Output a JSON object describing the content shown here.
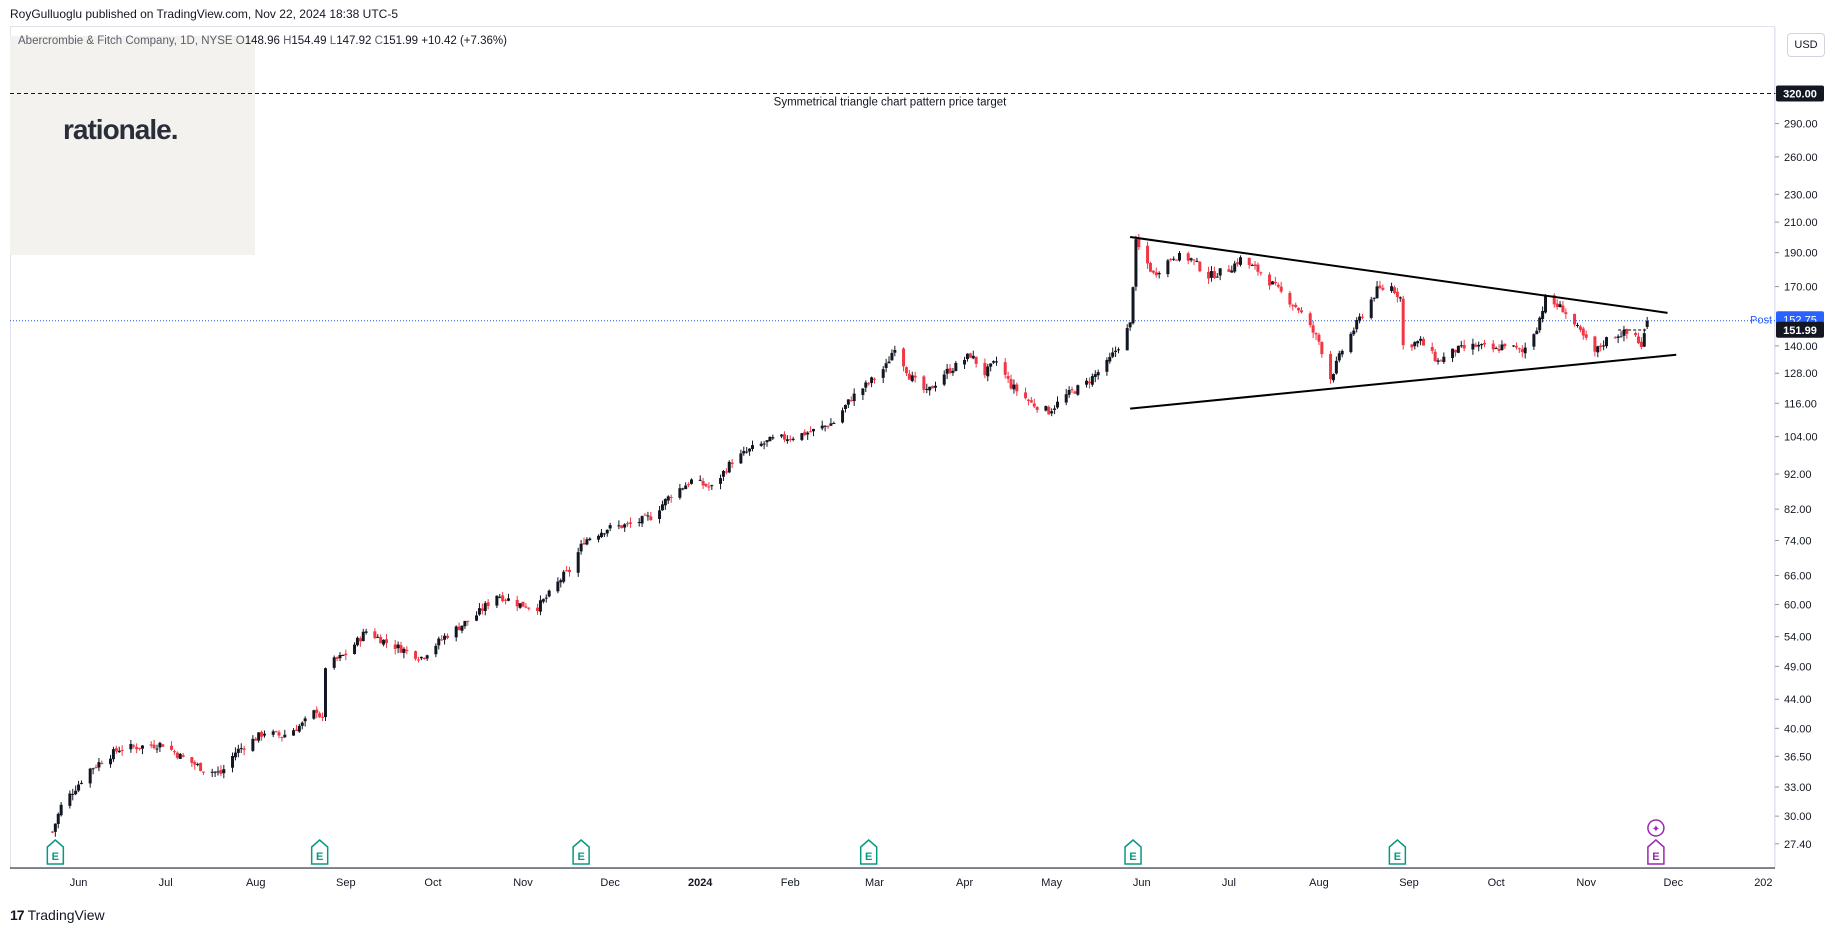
{
  "header": {
    "published": "RoyGulluoglu published on TradingView.com, Nov 22, 2024 18:38 UTC-5",
    "symbol_line": "Abercrombie & Fitch Company, 1D, NYSE",
    "ohlc": {
      "o_label": "O",
      "o": "148.96",
      "h_label": "H",
      "h": "154.49",
      "l_label": "L",
      "l": "147.92",
      "c_label": "C",
      "c": "151.99",
      "chg": "+10.42 (+7.36%)"
    }
  },
  "watermark": "rationale.",
  "currency_button": "USD",
  "footer_brand": "TradingView",
  "footer_mark": "17",
  "colors": {
    "up": "#131722",
    "down": "#f23645",
    "post": "#2962ff",
    "last": "#131722",
    "target": "#131722"
  },
  "chart_data": {
    "type": "candlestick",
    "scale": "log",
    "ylim": [
      26.5,
      340
    ],
    "price_ticks": [
      "320.00",
      "290.00",
      "260.00",
      "230.00",
      "210.00",
      "190.00",
      "170.00",
      "152.75",
      "151.99",
      "140.00",
      "128.00",
      "116.00",
      "104.00",
      "92.00",
      "82.00",
      "74.00",
      "66.00",
      "60.00",
      "54.00",
      "49.00",
      "44.00",
      "40.00",
      "36.50",
      "33.00",
      "30.00",
      "27.40"
    ],
    "tick_values": [
      320,
      290,
      260,
      230,
      210,
      190,
      170,
      140,
      128,
      116,
      104,
      92,
      82,
      74,
      66,
      60,
      54,
      49,
      44,
      40,
      36.5,
      33,
      30,
      27.4
    ],
    "x_labels": [
      "Jun",
      "Jul",
      "Aug",
      "Sep",
      "Oct",
      "Nov",
      "Dec",
      "2024",
      "Feb",
      "Mar",
      "Apr",
      "May",
      "Jun",
      "Jul",
      "Aug",
      "Sep",
      "Oct",
      "Nov",
      "Dec",
      "202"
    ],
    "x_label_dates": [
      "2023-06-01",
      "2023-07-01",
      "2023-08-01",
      "2023-09-01",
      "2023-10-01",
      "2023-11-01",
      "2023-12-01",
      "2024-01-01",
      "2024-02-01",
      "2024-03-01",
      "2024-04-01",
      "2024-05-01",
      "2024-06-01",
      "2024-07-01",
      "2024-08-01",
      "2024-09-01",
      "2024-10-01",
      "2024-11-01",
      "2024-12-01",
      "2025-01-01"
    ],
    "earnings_marker": "E",
    "earnings_dates": [
      "2023-05-24",
      "2023-08-23",
      "2023-11-21",
      "2024-02-28",
      "2024-05-29",
      "2024-08-28",
      "2024-11-25"
    ],
    "target": {
      "label": "Symmetrical triangle chart pattern price target",
      "price_label": "320.00",
      "value": 320
    },
    "post": {
      "label": "Post",
      "price_label": "152.75",
      "value": 152.75
    },
    "last": {
      "price_label": "151.99",
      "value": 151.99
    },
    "triangle": {
      "upper": [
        [
          "2024-05-28",
          200
        ],
        [
          "2024-11-29",
          156
        ]
      ],
      "lower": [
        [
          "2024-05-28",
          114
        ],
        [
          "2024-12-02",
          136
        ]
      ]
    },
    "ohlc_keypoints": [
      [
        "2023-05-23",
        28.5
      ],
      [
        "2023-05-26",
        31
      ],
      [
        "2023-06-05",
        35
      ],
      [
        "2023-06-15",
        37.4
      ],
      [
        "2023-06-30",
        38
      ],
      [
        "2023-07-06",
        36.5
      ],
      [
        "2023-07-14",
        35
      ],
      [
        "2023-07-20",
        34.5
      ],
      [
        "2023-07-25",
        37
      ],
      [
        "2023-08-04",
        39.5
      ],
      [
        "2023-08-10",
        39
      ],
      [
        "2023-08-17",
        40.5
      ],
      [
        "2023-08-22",
        42.5
      ],
      [
        "2023-08-24",
        41
      ],
      [
        "2023-08-25",
        49
      ],
      [
        "2023-09-01",
        51
      ],
      [
        "2023-09-08",
        55
      ],
      [
        "2023-09-15",
        53
      ],
      [
        "2023-09-22",
        51.5
      ],
      [
        "2023-09-27",
        50.5
      ],
      [
        "2023-10-05",
        54
      ],
      [
        "2023-10-16",
        58
      ],
      [
        "2023-10-23",
        62
      ],
      [
        "2023-10-31",
        60
      ],
      [
        "2023-11-06",
        59.5
      ],
      [
        "2023-11-10",
        62
      ],
      [
        "2023-11-15",
        66
      ],
      [
        "2023-11-17",
        67
      ],
      [
        "2023-11-22",
        74
      ],
      [
        "2023-11-30",
        77
      ],
      [
        "2023-12-08",
        78
      ],
      [
        "2023-12-15",
        80
      ],
      [
        "2023-12-22",
        86
      ],
      [
        "2023-12-29",
        90
      ],
      [
        "2024-01-05",
        88
      ],
      [
        "2024-01-12",
        96
      ],
      [
        "2024-01-19",
        100
      ],
      [
        "2024-01-26",
        103
      ],
      [
        "2024-02-02",
        104
      ],
      [
        "2024-02-09",
        106
      ],
      [
        "2024-02-16",
        109
      ],
      [
        "2024-02-22",
        118
      ],
      [
        "2024-02-29",
        125
      ],
      [
        "2024-03-05",
        131
      ],
      [
        "2024-03-08",
        140
      ],
      [
        "2024-03-13",
        127
      ],
      [
        "2024-03-19",
        120
      ],
      [
        "2024-03-25",
        128
      ],
      [
        "2024-03-29",
        131
      ],
      [
        "2024-04-03",
        136
      ],
      [
        "2024-04-08",
        128
      ],
      [
        "2024-04-12",
        133
      ],
      [
        "2024-04-17",
        123
      ],
      [
        "2024-04-24",
        116
      ],
      [
        "2024-04-30",
        113
      ],
      [
        "2024-05-06",
        119
      ],
      [
        "2024-05-13",
        124
      ],
      [
        "2024-05-20",
        132
      ],
      [
        "2024-05-24",
        140
      ],
      [
        "2024-05-28",
        150
      ],
      [
        "2024-05-30",
        196
      ],
      [
        "2024-06-05",
        177
      ],
      [
        "2024-06-12",
        188
      ],
      [
        "2024-06-18",
        186
      ],
      [
        "2024-06-24",
        176
      ],
      [
        "2024-07-01",
        180
      ],
      [
        "2024-07-05",
        186
      ],
      [
        "2024-07-12",
        178
      ],
      [
        "2024-07-18",
        168
      ],
      [
        "2024-07-25",
        158
      ],
      [
        "2024-08-01",
        142
      ],
      [
        "2024-08-05",
        126
      ],
      [
        "2024-08-09",
        138
      ],
      [
        "2024-08-15",
        153
      ],
      [
        "2024-08-21",
        168
      ],
      [
        "2024-08-26",
        170
      ],
      [
        "2024-08-29",
        164
      ],
      [
        "2024-08-30",
        140
      ],
      [
        "2024-09-05",
        142
      ],
      [
        "2024-09-11",
        133
      ],
      [
        "2024-09-17",
        138
      ],
      [
        "2024-09-24",
        140
      ],
      [
        "2024-10-01",
        138
      ],
      [
        "2024-10-04",
        141
      ],
      [
        "2024-10-10",
        137
      ],
      [
        "2024-10-15",
        149
      ],
      [
        "2024-10-18",
        163
      ],
      [
        "2024-10-24",
        158
      ],
      [
        "2024-10-30",
        146
      ],
      [
        "2024-11-04",
        137
      ],
      [
        "2024-11-08",
        143
      ],
      [
        "2024-11-13",
        146
      ],
      [
        "2024-11-18",
        145
      ],
      [
        "2024-11-20",
        139
      ],
      [
        "2024-11-22",
        151.99
      ]
    ]
  }
}
